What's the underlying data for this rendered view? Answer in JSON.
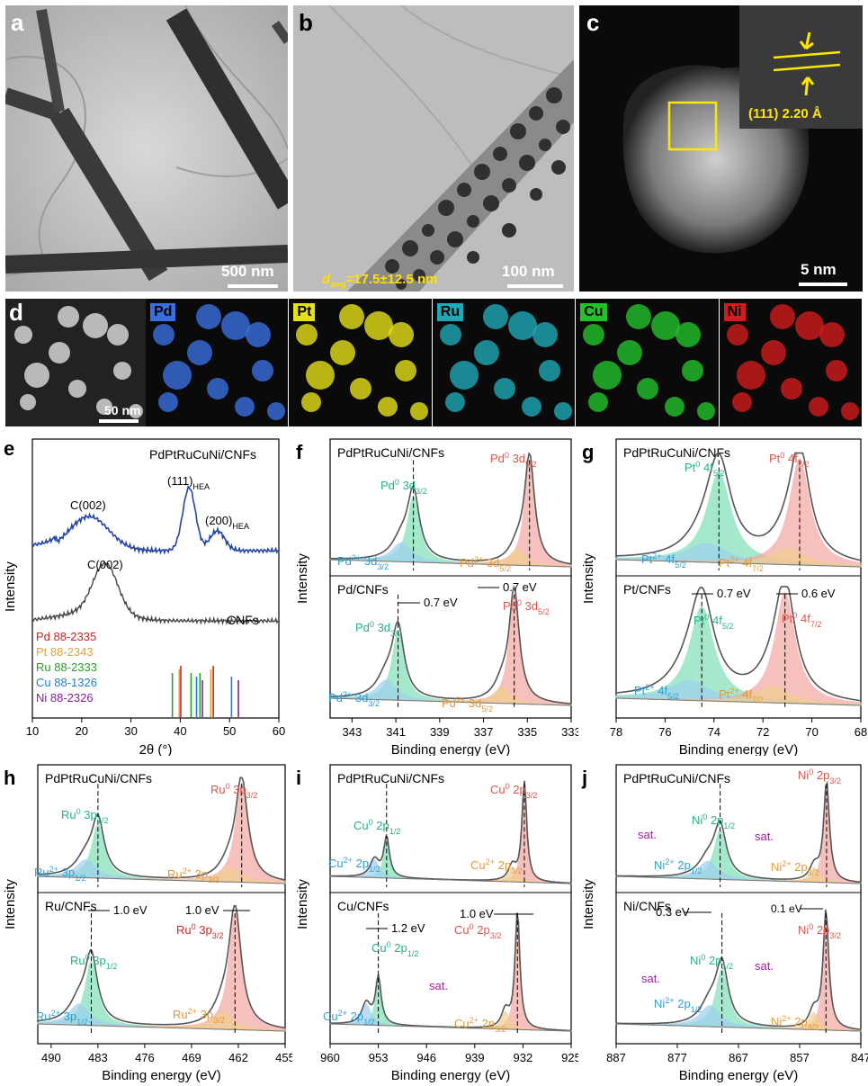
{
  "panels": {
    "a": {
      "label": "a",
      "scale": "500 nm"
    },
    "b": {
      "label": "b",
      "scale": "100 nm",
      "davg_sym": "d",
      "davg_sub": "avg",
      "davg_val": "=17.5±12.5  nm"
    },
    "c": {
      "label": "c",
      "scale": "5 nm",
      "lattice": "(111) 2.20 Å"
    },
    "d": {
      "label": "d",
      "scale": "50 nm",
      "maps": [
        {
          "name": "Pd",
          "color": "#3a6fe0"
        },
        {
          "name": "Pt",
          "color": "#e6e01a"
        },
        {
          "name": "Ru",
          "color": "#1fa9b6"
        },
        {
          "name": "Cu",
          "color": "#22c22a"
        },
        {
          "name": "Ni",
          "color": "#d01c1c"
        }
      ]
    }
  },
  "chart_data": [
    {
      "id": "e",
      "type": "line",
      "title": "PdPtRuCuNi/CNFs",
      "xlabel": "2θ (°)",
      "ylabel": "Intensity",
      "xlim": [
        10,
        60
      ],
      "xticks": [
        "10",
        "20",
        "30",
        "40",
        "50",
        "60"
      ],
      "series": [
        {
          "name": "PdPtRuCuNi/CNFs",
          "color": "#2345a8"
        },
        {
          "name": "CNFs",
          "color": "#444444"
        }
      ],
      "annotations": {
        "c002_top": "C(002)",
        "c002_bottom": "C(002)",
        "hea111": "(111)",
        "hea200": "(200)",
        "hea_sub": "HEA",
        "cnfs": "CNFs"
      },
      "references": [
        {
          "label": "Pd 88-2335",
          "color": "#d22020",
          "x": [
            40.1,
            46.7
          ]
        },
        {
          "label": "Pt 88-2343",
          "color": "#e0a040",
          "x": [
            39.8,
            46.2
          ]
        },
        {
          "label": "Ru 88-2333",
          "color": "#2aa02a",
          "x": [
            38.4,
            42.2,
            44.0
          ]
        },
        {
          "label": "Cu 88-1326",
          "color": "#2080d0",
          "x": [
            43.3,
            50.4
          ]
        },
        {
          "label": "Ni 88-2326",
          "color": "#8020a0",
          "x": [
            44.5,
            51.8
          ]
        }
      ]
    },
    {
      "id": "f",
      "type": "line",
      "xlabel": "Binding energy (eV)",
      "ylabel": "Intensity",
      "xlim": [
        344,
        333
      ],
      "xticks": [
        "343",
        "341",
        "339",
        "337",
        "335",
        "333"
      ],
      "top": {
        "title": "PdPtRuCuNi/CNFs",
        "peaks": [
          340.2,
          334.9
        ]
      },
      "bottom": {
        "title": "Pd/CNFs",
        "peaks": [
          340.9,
          335.6
        ]
      },
      "labels": {
        "pd0_32": "Pd0 3d3/2",
        "pd0_52": "Pd0 3d5/2",
        "pd2_32": "Pd2+ 3d3/2",
        "pd2_52": "Pd2+ 3d5/2"
      },
      "shifts": [
        "0.7 eV",
        "0.7 eV"
      ]
    },
    {
      "id": "g",
      "type": "line",
      "xlabel": "Binding energy (eV)",
      "ylabel": "Intensity",
      "xlim": [
        78,
        68
      ],
      "xticks": [
        "78",
        "76",
        "74",
        "72",
        "70",
        "68"
      ],
      "top": {
        "title": "PdPtRuCuNi/CNFs",
        "peaks": [
          73.8,
          70.5
        ]
      },
      "bottom": {
        "title": "Pt/CNFs",
        "peaks": [
          74.5,
          71.1
        ]
      },
      "labels": {
        "pt0_52": "Pt0 4f5/2",
        "pt0_72": "Pt0 4f7/2",
        "pt2_52": "Pt2+ 4f5/2",
        "pt2_72": "Pt2+ 4f7/2"
      },
      "shifts": [
        "0.7 eV",
        "0.6 eV"
      ]
    },
    {
      "id": "h",
      "type": "line",
      "xlabel": "Binding energy (eV)",
      "ylabel": "Intensity",
      "xlim": [
        492,
        455
      ],
      "xticks": [
        "490",
        "483",
        "476",
        "469",
        "462",
        "455"
      ],
      "top": {
        "title": "PdPtRuCuNi/CNFs",
        "peaks": [
          483.0,
          461.5
        ]
      },
      "bottom": {
        "title": "Ru/CNFs",
        "peaks": [
          484.0,
          462.5
        ]
      },
      "labels": {
        "ru0_12": "Ru0 3p1/2",
        "ru0_32": "Ru0 3p3/2",
        "ru2_12": "Ru2+ 3p1/2",
        "ru2_32": "Ru2+ 3p3/2"
      },
      "shifts": [
        "1.0 eV",
        "1.0 eV"
      ]
    },
    {
      "id": "i",
      "type": "line",
      "xlabel": "Binding energy (eV)",
      "ylabel": "Intensity",
      "xlim": [
        960,
        925
      ],
      "xticks": [
        "960",
        "953",
        "946",
        "939",
        "932",
        "925"
      ],
      "top": {
        "title": "PdPtRuCuNi/CNFs",
        "peaks": [
          951.8,
          931.8
        ]
      },
      "bottom": {
        "title": "Cu/CNFs",
        "peaks": [
          953.0,
          932.8
        ]
      },
      "labels": {
        "cu0_12": "Cu0 2p1/2",
        "cu0_32": "Cu0 2p3/2",
        "cu2_12": "Cu2+ 2p1/2",
        "cu2_32": "Cu2+ 2p3/2",
        "sat": "sat."
      },
      "shifts": [
        "1.2 eV",
        "1.0 eV"
      ]
    },
    {
      "id": "j",
      "type": "line",
      "xlabel": "Binding energy (eV)",
      "ylabel": "Intensity",
      "xlim": [
        887,
        847
      ],
      "xticks": [
        "887",
        "877",
        "867",
        "857",
        "847"
      ],
      "top": {
        "title": "PdPtRuCuNi/CNFs",
        "peaks": [
          870.0,
          852.6
        ]
      },
      "bottom": {
        "title": "Ni/CNFs",
        "peaks": [
          869.7,
          852.7
        ]
      },
      "labels": {
        "ni0_12": "Ni0 2p1/2",
        "ni0_32": "Ni0 2p3/2",
        "ni2_12": "Ni2+ 2p1/2",
        "ni2_32": "Ni2+ 2p3/2",
        "sat": "sat."
      },
      "shifts": [
        "0.3 eV",
        "0.1 eV"
      ]
    }
  ]
}
